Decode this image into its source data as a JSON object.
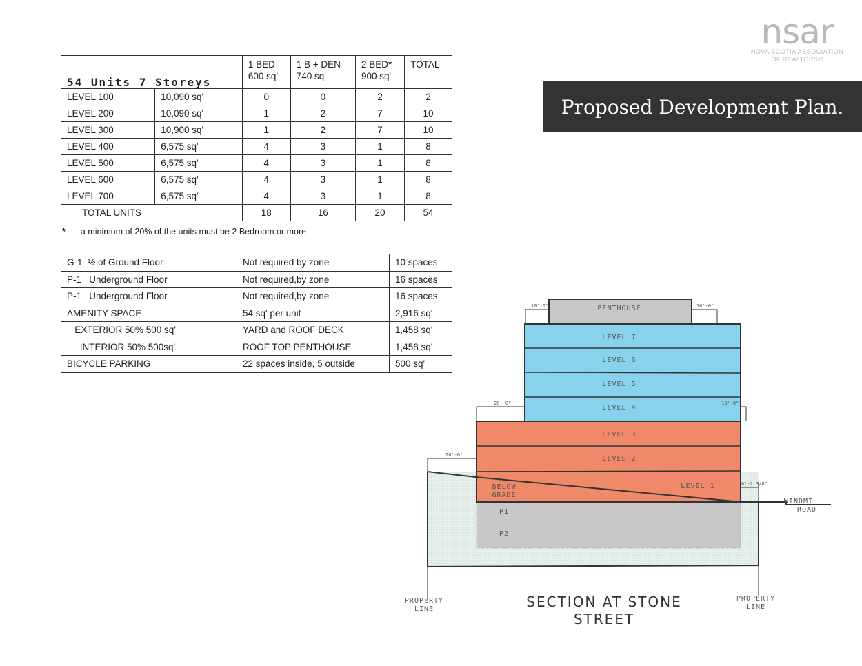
{
  "logo": {
    "mark": "nsar",
    "line1": "NOVA SCOTIA ASSOCIATION",
    "line2": "OF REALTORS®"
  },
  "banner": {
    "title": "Proposed Development Plan."
  },
  "units_table": {
    "title": "54 Units 7 Storeys",
    "headers": [
      [
        "1 BED",
        "600 sq'"
      ],
      [
        "1 B + DEN",
        "740 sq'"
      ],
      [
        "2 BED*",
        "900 sq'"
      ],
      [
        "TOTAL",
        ""
      ]
    ],
    "rows": [
      [
        "LEVEL 100",
        "10,090 sq'",
        "0",
        "0",
        "2",
        "2"
      ],
      [
        "LEVEL 200",
        "10,090 sq'",
        "1",
        "2",
        "7",
        "10"
      ],
      [
        "LEVEL 300",
        "10,900 sq'",
        "1",
        "2",
        "7",
        "10"
      ],
      [
        "LEVEL 400",
        "6,575 sq'",
        "4",
        "3",
        "1",
        "8"
      ],
      [
        "LEVEL 500",
        "6,575 sq'",
        "4",
        "3",
        "1",
        "8"
      ],
      [
        "LEVEL 600",
        "6,575 sq'",
        "4",
        "3",
        "1",
        "8"
      ],
      [
        "LEVEL 700",
        "6,575 sq'",
        "4",
        "3",
        "1",
        "8"
      ]
    ],
    "total": [
      "TOTAL UNITS",
      "18",
      "16",
      "20",
      "54"
    ],
    "footnote_mark": "*",
    "footnote": "a minimum of 20% of the units must be 2 Bedroom or more"
  },
  "parking_table": {
    "rows": [
      [
        "G-1  ½ of Ground Floor",
        "Not required by zone",
        "10 spaces"
      ],
      [
        "P-1   Underground Floor",
        "Not required,by zone",
        "16 spaces"
      ],
      [
        "P-1   Underground Floor",
        "Not required,by zone",
        "16 spaces"
      ],
      [
        "AMENITY SPACE",
        "54 sq' per unit",
        "2,916 sq'"
      ],
      [
        "   EXTERIOR 50% 500 sq'",
        "YARD and ROOF DECK",
        "1,458 sq'"
      ],
      [
        "     INTERIOR 50% 500sq'",
        "ROOF TOP PENTHOUSE",
        "1,458 sq'"
      ],
      [
        "BICYCLE PARKING",
        "22 spaces inside, 5 outside",
        "500 sq'"
      ]
    ]
  },
  "section": {
    "levels": {
      "penthouse": "PENTHOUSE",
      "l7": "LEVEL 7",
      "l6": "LEVEL 6",
      "l5": "LEVEL 5",
      "l4": "LEVEL 4",
      "l3": "LEVEL 3",
      "l2": "LEVEL 2",
      "l1": "LEVEL 1",
      "below1": "BELOW",
      "below2": "GRADE",
      "p1": "P1",
      "p2": "P2"
    },
    "dims": {
      "d1": "10'-0\"",
      "d2": "10'-0\"",
      "d3": "20'-0\"",
      "d4": "10'-0\"",
      "d5": "20'-0\"",
      "d6": "8'-2 3/8\""
    },
    "road1": "WINDMILL",
    "road2": "ROAD",
    "prop1": "PROPERTY",
    "prop2": "LINE",
    "caption1": "SECTION AT STONE",
    "caption2": "STREET",
    "colors": {
      "upper": "#87d3ee",
      "lower": "#f0896a",
      "gray": "#c8c8c8",
      "ground": "#e4efe8"
    }
  }
}
